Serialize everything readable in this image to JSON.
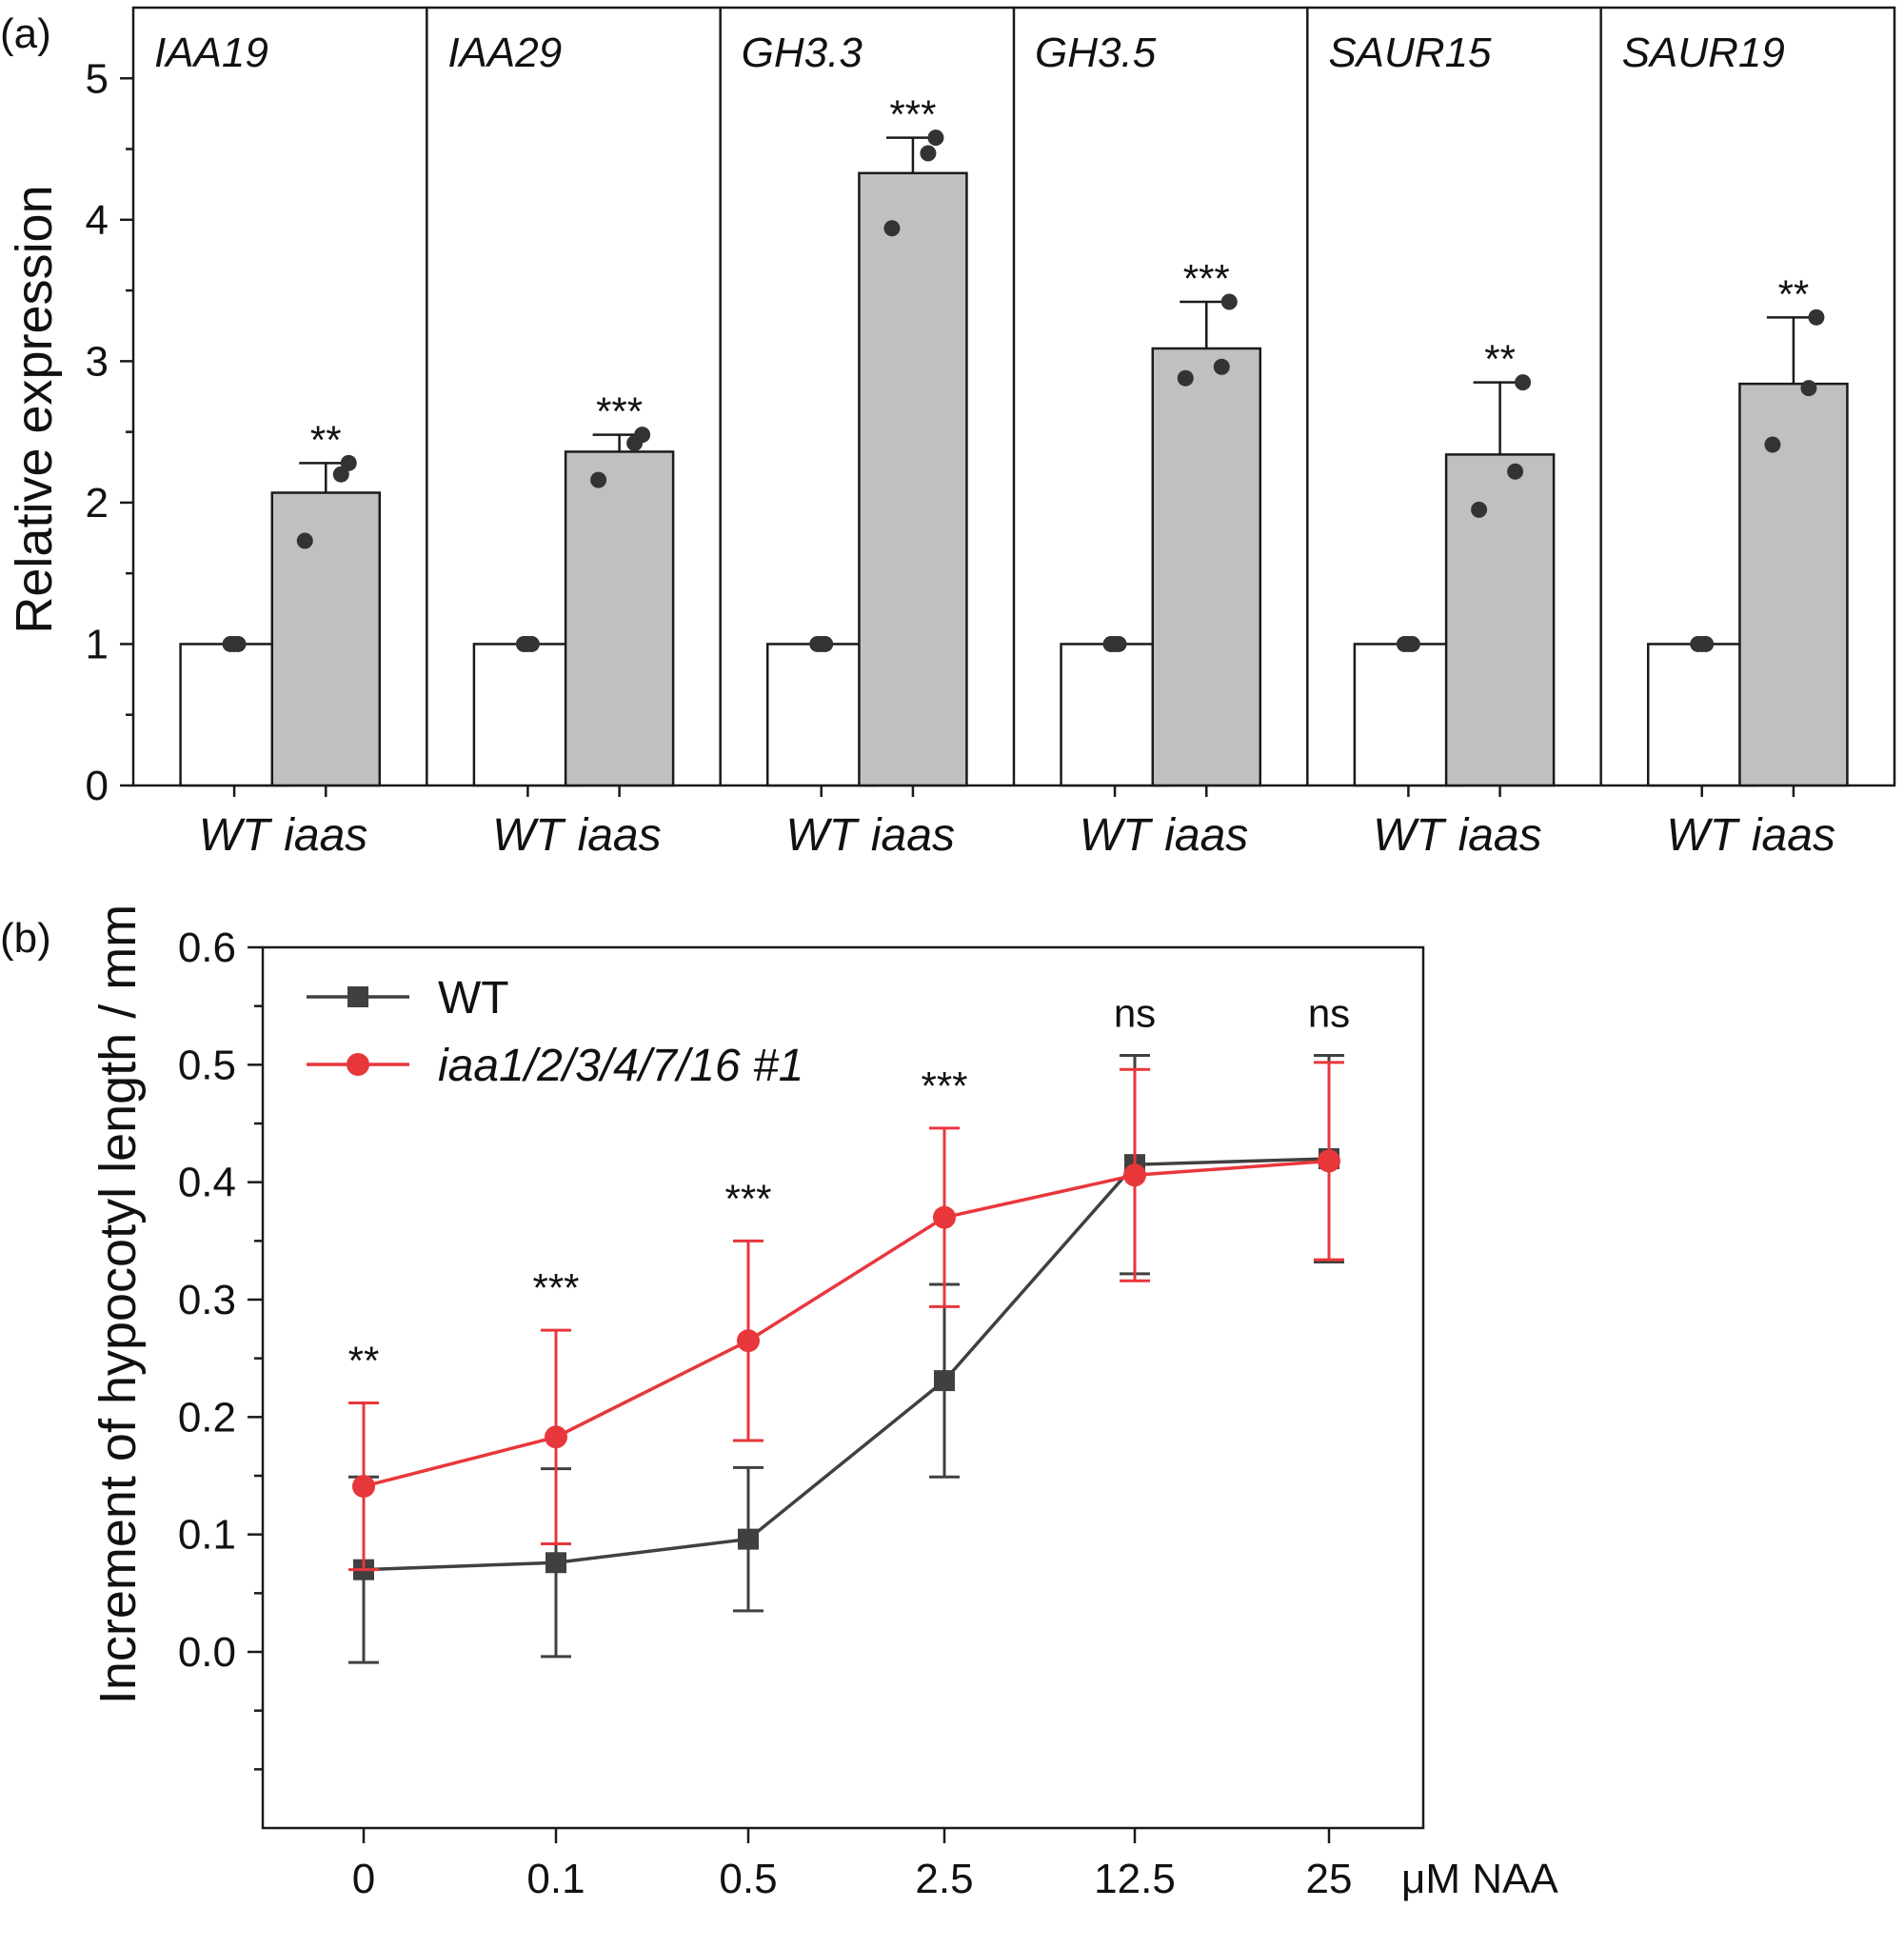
{
  "chart_data": [
    {
      "panel_label": "(a)",
      "type": "bar",
      "ylabel": "Relative expression",
      "ylim": [
        0,
        5.5
      ],
      "yticks": [
        0,
        1,
        2,
        3,
        4,
        5
      ],
      "categories": [
        "WT",
        "iaas"
      ],
      "bar_colors": {
        "WT": "#ffffff",
        "iaas": "#c0c0c0"
      },
      "point_color": "#333333",
      "genes": [
        {
          "name": "IAA19",
          "values": [
            1,
            2.07
          ],
          "error": [
            0,
            0.21
          ],
          "points": [
            [
              1,
              1,
              1
            ],
            [
              1.73,
              2.2,
              2.28
            ]
          ],
          "significance": "**"
        },
        {
          "name": "IAA29",
          "values": [
            1,
            2.36
          ],
          "error": [
            0,
            0.12
          ],
          "points": [
            [
              1,
              1,
              1
            ],
            [
              2.16,
              2.42,
              2.48
            ]
          ],
          "significance": "***"
        },
        {
          "name": "GH3.3",
          "values": [
            1,
            4.33
          ],
          "error": [
            0,
            0.25
          ],
          "points": [
            [
              1,
              1,
              1
            ],
            [
              3.94,
              4.47,
              4.58
            ]
          ],
          "significance": "***"
        },
        {
          "name": "GH3.5",
          "values": [
            1,
            3.09
          ],
          "error": [
            0,
            0.33
          ],
          "points": [
            [
              1,
              1,
              1
            ],
            [
              2.88,
              2.96,
              3.42
            ]
          ],
          "significance": "***"
        },
        {
          "name": "SAUR15",
          "values": [
            1,
            2.34
          ],
          "error": [
            0,
            0.51
          ],
          "points": [
            [
              1,
              1,
              1
            ],
            [
              1.95,
              2.22,
              2.85
            ]
          ],
          "significance": "**"
        },
        {
          "name": "SAUR19",
          "values": [
            1,
            2.84
          ],
          "error": [
            0,
            0.47
          ],
          "points": [
            [
              1,
              1,
              1
            ],
            [
              2.41,
              2.81,
              3.31
            ]
          ],
          "significance": "**"
        }
      ]
    },
    {
      "panel_label": "(b)",
      "type": "line",
      "ylabel": "Increment of hypocotyl length / mm",
      "xlabel": "μM NAA",
      "x": [
        "0",
        "0.1",
        "0.5",
        "2.5",
        "12.5",
        "25"
      ],
      "ylim": [
        -0.15,
        0.6
      ],
      "yticks": [
        "0.0",
        "0.1",
        "0.2",
        "0.3",
        "0.4",
        "0.5",
        "0.6"
      ],
      "legend_position": "top-left",
      "series": [
        {
          "name": "WT",
          "color": "#404040",
          "marker": "square",
          "values": [
            0.07,
            0.076,
            0.096,
            0.231,
            0.415,
            0.42
          ],
          "error": [
            0.079,
            0.08,
            0.061,
            0.082,
            0.093,
            0.088
          ]
        },
        {
          "name": "iaa1/2/3/4/7/16 #1",
          "color": "#e8373b",
          "marker": "circle",
          "values": [
            0.141,
            0.183,
            0.265,
            0.37,
            0.406,
            0.418
          ],
          "error": [
            0.071,
            0.091,
            0.085,
            0.076,
            0.09,
            0.084
          ]
        }
      ],
      "significance": [
        "**",
        "***",
        "***",
        "***",
        "ns",
        "ns"
      ]
    }
  ]
}
